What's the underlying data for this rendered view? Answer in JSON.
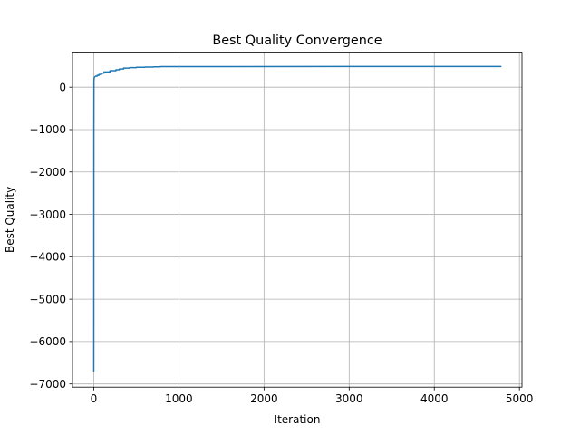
{
  "chart_data": {
    "type": "line",
    "title": "Best Quality Convergence",
    "xlabel": "Iteration",
    "ylabel": "Best Quality",
    "xlim": [
      -250,
      5030
    ],
    "ylim": [
      -7075,
      825
    ],
    "xticks": [
      0,
      1000,
      2000,
      3000,
      4000,
      5000
    ],
    "xtick_labels": [
      "0",
      "1000",
      "2000",
      "3000",
      "4000",
      "5000"
    ],
    "yticks": [
      -7000,
      -6000,
      -5000,
      -4000,
      -3000,
      -2000,
      -1000,
      0
    ],
    "ytick_labels": [
      "−7000",
      "−6000",
      "−5000",
      "−4000",
      "−3000",
      "−2000",
      "−1000",
      "0"
    ],
    "grid": true,
    "series": [
      {
        "color": "#1f77b4",
        "x": [
          0,
          1,
          2,
          5,
          10,
          20,
          40,
          40,
          60,
          60,
          90,
          90,
          120,
          120,
          190,
          190,
          260,
          260,
          300,
          300,
          350,
          350,
          420,
          420,
          500,
          500,
          600,
          600,
          700,
          700,
          780,
          780,
          1000,
          4780
        ],
        "y": [
          -6700,
          -1000,
          150,
          220,
          240,
          260,
          260,
          280,
          280,
          300,
          300,
          330,
          330,
          360,
          360,
          390,
          390,
          410,
          410,
          430,
          430,
          450,
          450,
          460,
          460,
          470,
          470,
          475,
          475,
          480,
          480,
          485,
          486,
          488
        ]
      }
    ]
  }
}
